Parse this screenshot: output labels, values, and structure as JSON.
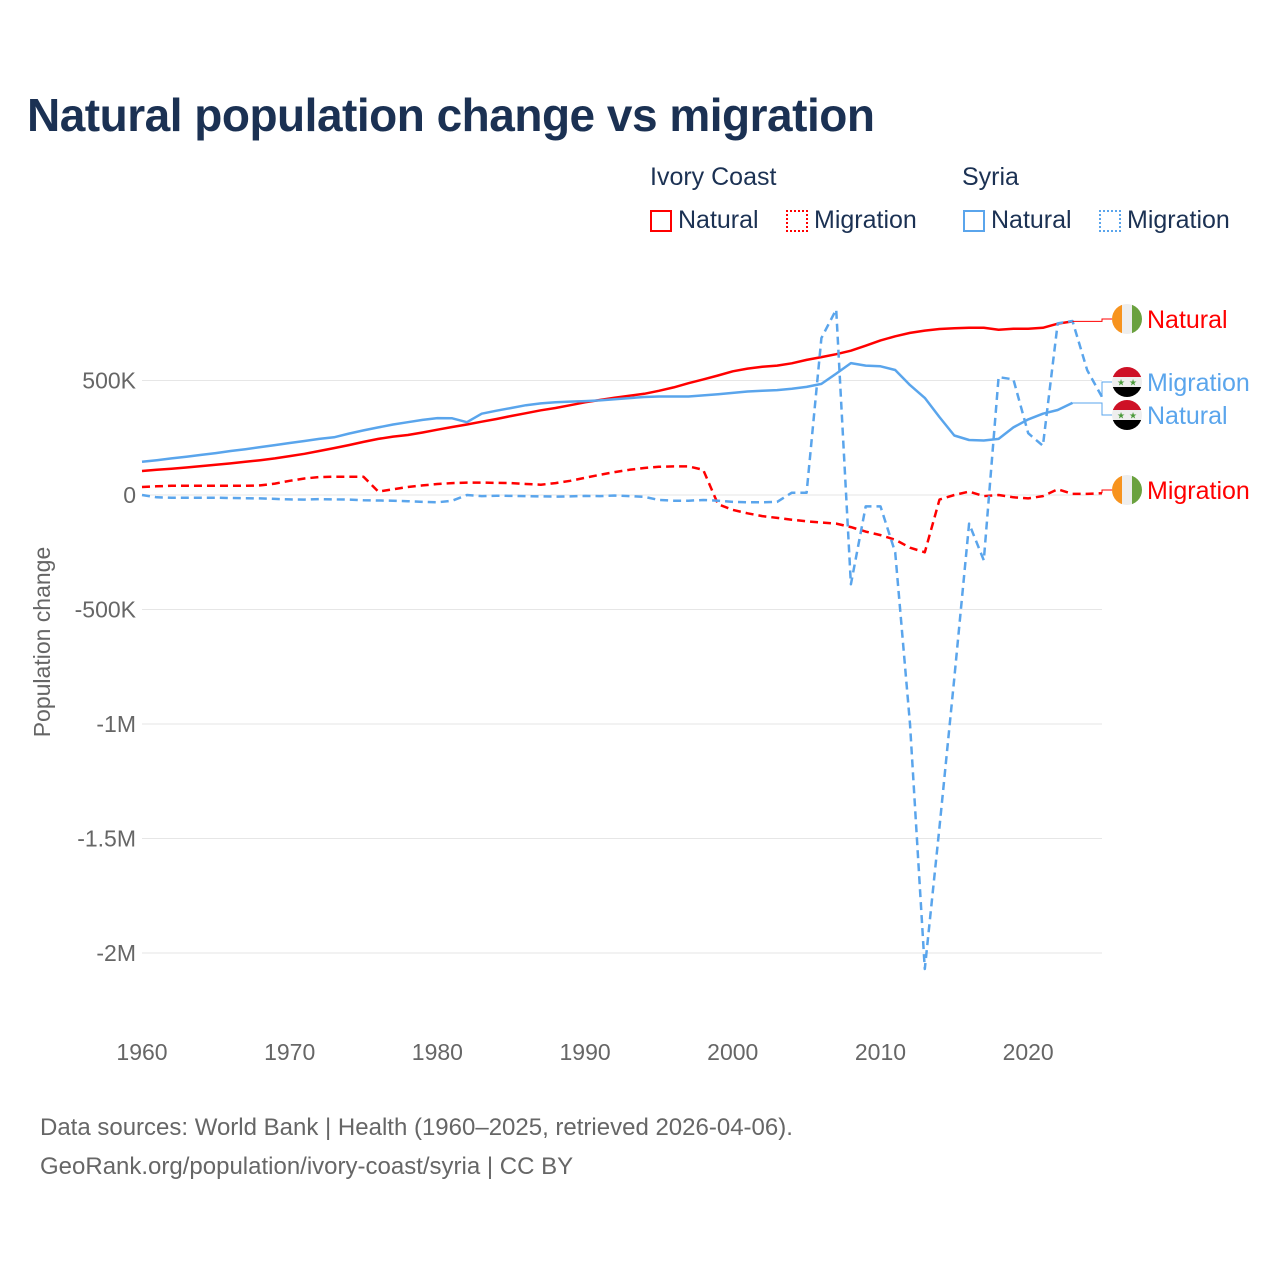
{
  "chart_data": {
    "type": "line",
    "title": "Natural population change vs migration",
    "xlabel": "",
    "ylabel": "Population change",
    "xlim": [
      1960,
      2025
    ],
    "ylim": [
      -2250000,
      800000
    ],
    "x_ticks": [
      1960,
      1970,
      1980,
      1990,
      2000,
      2010,
      2020
    ],
    "x_tick_labels": [
      "1960",
      "1970",
      "1980",
      "1990",
      "2000",
      "2010",
      "2020"
    ],
    "y_ticks": [
      500000,
      0,
      -500000,
      -1000000,
      -1500000,
      -2000000
    ],
    "y_tick_labels": [
      "500K",
      "0",
      "-500K",
      "-1M",
      "-1.5M",
      "-2M"
    ],
    "grid": true,
    "legend_placement": "top-right",
    "legend_groups": [
      "Ivory Coast",
      "Syria"
    ],
    "x_start": 1960,
    "series": [
      {
        "name": "Natural",
        "country": "Ivory Coast",
        "end_label": "Natural",
        "color": "#ff0000",
        "style": "solid",
        "flag": "ivory-coast",
        "values": [
          105000,
          110000,
          115000,
          120000,
          126000,
          132000,
          138000,
          145000,
          152000,
          160000,
          170000,
          180000,
          192000,
          205000,
          218000,
          232000,
          245000,
          255000,
          262000,
          273000,
          285000,
          297000,
          308000,
          320000,
          332000,
          345000,
          357000,
          370000,
          380000,
          392000,
          405000,
          415000,
          425000,
          433000,
          442000,
          455000,
          470000,
          488000,
          505000,
          522000,
          540000,
          552000,
          560000,
          565000,
          575000,
          590000,
          602000,
          615000,
          630000,
          652000,
          675000,
          693000,
          708000,
          718000,
          725000,
          728000,
          730000,
          730000,
          722000,
          726000,
          726000,
          730000,
          748000,
          758000,
          null,
          null
        ]
      },
      {
        "name": "Migration",
        "country": "Ivory Coast",
        "end_label": "Migration",
        "color": "#ff0000",
        "style": "dashed",
        "flag": "ivory-coast",
        "values": [
          35000,
          38000,
          40000,
          40000,
          40000,
          40000,
          40000,
          40000,
          42000,
          50000,
          62000,
          72000,
          78000,
          80000,
          80000,
          80000,
          15000,
          25000,
          35000,
          42000,
          48000,
          52000,
          54000,
          54000,
          53000,
          52000,
          48000,
          45000,
          52000,
          62000,
          75000,
          88000,
          100000,
          110000,
          118000,
          123000,
          125000,
          125000,
          110000,
          -40000,
          -65000,
          -80000,
          -92000,
          -100000,
          -108000,
          -115000,
          -120000,
          -125000,
          -140000,
          -160000,
          -175000,
          -195000,
          -230000,
          -250000,
          -20000,
          0,
          15000,
          -5000,
          0,
          -10000,
          -15000,
          -5000,
          25000,
          5000,
          5000,
          8000
        ]
      },
      {
        "name": "Natural",
        "country": "Syria",
        "end_label": "Natural",
        "color": "#5aa5ec",
        "style": "solid",
        "flag": "syria",
        "values": [
          145000,
          152000,
          160000,
          167000,
          175000,
          183000,
          192000,
          200000,
          209000,
          218000,
          227000,
          236000,
          245000,
          252000,
          268000,
          282000,
          295000,
          308000,
          318000,
          328000,
          336000,
          335000,
          318000,
          355000,
          368000,
          380000,
          392000,
          400000,
          405000,
          408000,
          410000,
          413000,
          418000,
          423000,
          428000,
          430000,
          430000,
          430000,
          435000,
          440000,
          446000,
          452000,
          455000,
          458000,
          464000,
          472000,
          485000,
          530000,
          576000,
          565000,
          562000,
          546000,
          480000,
          424000,
          340000,
          260000,
          240000,
          238000,
          245000,
          295000,
          330000,
          355000,
          371000,
          402000,
          null,
          null
        ]
      },
      {
        "name": "Migration",
        "country": "Syria",
        "end_label": "Migration",
        "color": "#5aa5ec",
        "style": "dashed",
        "flag": "syria",
        "values": [
          0,
          -10000,
          -12000,
          -12000,
          -12000,
          -12000,
          -13000,
          -14000,
          -15000,
          -17000,
          -19000,
          -20000,
          -18000,
          -19000,
          -20000,
          -23000,
          -24000,
          -25000,
          -27000,
          -30000,
          -32000,
          -25000,
          0,
          -5000,
          -3000,
          -4000,
          -5000,
          -6000,
          -7000,
          -6000,
          -4000,
          -5000,
          -2000,
          -5000,
          -8000,
          -22000,
          -25000,
          -25000,
          -22000,
          -25000,
          -30000,
          -32000,
          -32000,
          -30000,
          10000,
          10000,
          685000,
          810000,
          -390000,
          -50000,
          -50000,
          -250000,
          -1000000,
          -2070000,
          -1450000,
          -800000,
          -125000,
          -285000,
          515000,
          505000,
          270000,
          215000,
          750000,
          760000,
          545000,
          428000
        ]
      }
    ]
  },
  "legend": {
    "group1": "Ivory Coast",
    "group2": "Syria",
    "items": [
      "Natural",
      "Migration",
      "Natural",
      "Migration"
    ]
  },
  "footer": {
    "line1": "Data sources: World Bank | Health (1960–2025, retrieved 2026-04-06).",
    "line2": "GeoRank.org/population/ivory-coast/syria | CC BY"
  }
}
